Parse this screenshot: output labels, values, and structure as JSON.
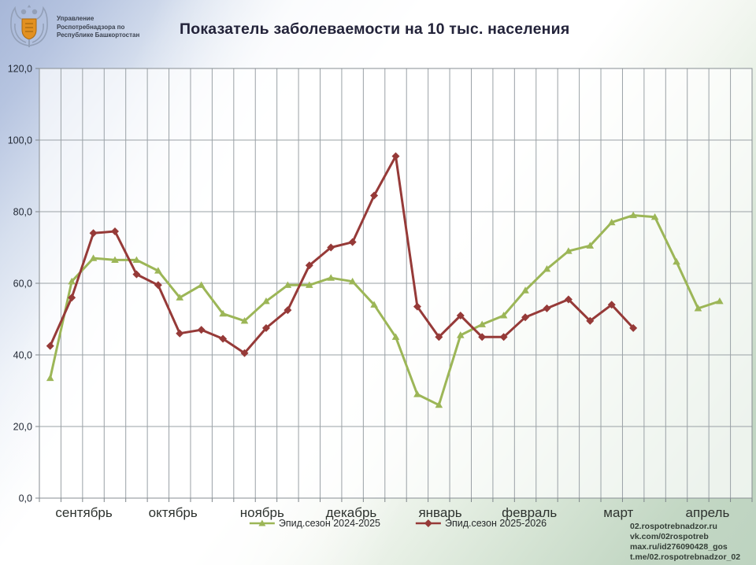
{
  "header": {
    "logo": {
      "lines": [
        "Управление",
        "Роспотребнадзора по",
        "Республике Башкортостан"
      ]
    },
    "title": "Показатель заболеваемости на 10 тыс. населения"
  },
  "chart_data": {
    "type": "line",
    "title": "Показатель заболеваемости на 10 тыс. населения",
    "xlabel": "",
    "ylabel": "",
    "ylim": [
      0,
      120
    ],
    "ytick_step": 20,
    "ytick_labels": [
      "0,0",
      "20,0",
      "40,0",
      "60,0",
      "80,0",
      "100,0",
      "120,0"
    ],
    "grid": true,
    "legend_position": "bottom",
    "months": [
      "сентябрь",
      "октябрь",
      "ноябрь",
      "декабрь",
      "январь",
      "февраль",
      "март",
      "апрель"
    ],
    "points_per_month": 4,
    "columns": 33,
    "series": [
      {
        "name": "Эпид.сезон 2024-2025",
        "color": "#9cb657",
        "marker": "triangle",
        "values": [
          33.5,
          60.5,
          67,
          66.5,
          66.5,
          63.5,
          56,
          59.5,
          51.5,
          49.5,
          55,
          59.5,
          59.5,
          61.5,
          60.5,
          54,
          45,
          29,
          26,
          45.5,
          48.5,
          51,
          58,
          64,
          69,
          70.5,
          77,
          79,
          78.5,
          66,
          53,
          55
        ]
      },
      {
        "name": "Эпид.сезон 2025-2026",
        "color": "#963a38",
        "marker": "diamond",
        "values": [
          42.5,
          56,
          74,
          74.5,
          62.5,
          59.5,
          46,
          47,
          44.5,
          40.5,
          47.5,
          52.5,
          65,
          70,
          71.5,
          84.5,
          95.5,
          53.5,
          45,
          51,
          45,
          45,
          50.5,
          53,
          55.5,
          49.5,
          54,
          47.5
        ]
      }
    ]
  },
  "footer": {
    "links": [
      "02.rospotrebnadzor.ru",
      "vk.com/02rospotreb",
      "max.ru/id276090428_gos",
      "t.me/02.rospotrebnadzor_02"
    ]
  },
  "colors": {
    "season_2024_2025": "#9cb657",
    "season_2025_2026": "#963a38",
    "background_blue": "#aab9d8",
    "background_green": "#c0d6c2",
    "gridline": "#9aa1a6"
  }
}
